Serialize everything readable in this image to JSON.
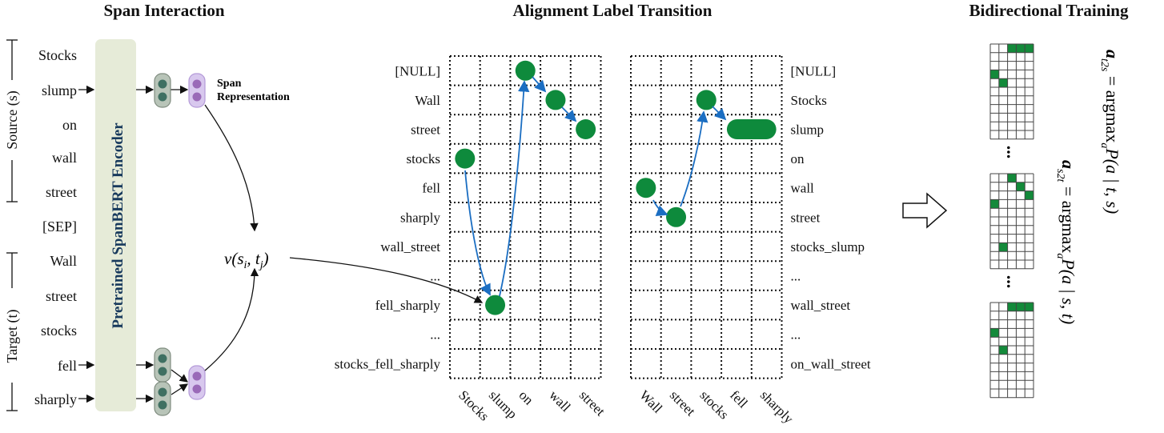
{
  "titles": {
    "span_interaction": "Span Interaction",
    "alignment": "Alignment Label Transition",
    "bidirectional": "Bidirectional Training"
  },
  "left": {
    "source_label": "Source (s)",
    "target_label": "Target (t)",
    "tokens": [
      "Stocks",
      "slump",
      "on",
      "wall",
      "street",
      "[SEP]",
      "Wall",
      "street",
      "stocks",
      "fell",
      "sharply"
    ],
    "encoder_label": "Pretrained SpanBERT Encoder",
    "span_rep_label_line1": "Span",
    "span_rep_label_line2": "Representation",
    "pair_fn": "v(s",
    "pair_fn_i": "i",
    "pair_fn_mid": ", t",
    "pair_fn_j": "j",
    "pair_fn_end": ")"
  },
  "grid_left": {
    "row_labels": [
      "[NULL]",
      "Wall",
      "street",
      "stocks",
      "fell",
      "sharply",
      "wall_street",
      "...",
      "fell_sharply",
      "...",
      "stocks_fell_sharply"
    ],
    "col_labels": [
      "Stocks",
      "slump",
      "on",
      "wall",
      "street"
    ],
    "alignments": [
      [
        3,
        0
      ],
      [
        8,
        1
      ],
      [
        0,
        2
      ],
      [
        1,
        3
      ],
      [
        2,
        4
      ]
    ]
  },
  "grid_right": {
    "row_labels": [
      "[NULL]",
      "Stocks",
      "slump",
      "on",
      "wall",
      "street",
      "stocks_slump",
      "...",
      "wall_street",
      "...",
      "on_wall_street"
    ],
    "col_labels": [
      "Wall",
      "street",
      "stocks",
      "fell",
      "sharply"
    ],
    "alignments": [
      [
        4,
        0
      ],
      [
        5,
        1
      ],
      [
        1,
        2
      ],
      [
        2,
        3,
        4
      ]
    ]
  },
  "mini_grids": [
    {
      "cells": [
        [
          0,
          2
        ],
        [
          0,
          3
        ],
        [
          0,
          4
        ],
        [
          3,
          0
        ],
        [
          4,
          1
        ]
      ]
    },
    {
      "cells": [
        [
          0,
          2
        ],
        [
          1,
          3
        ],
        [
          2,
          4
        ],
        [
          3,
          0
        ],
        [
          8,
          1
        ]
      ]
    },
    {
      "cells": [
        [
          0,
          2
        ],
        [
          0,
          3
        ],
        [
          0,
          4
        ],
        [
          3,
          0
        ],
        [
          5,
          1
        ]
      ]
    }
  ],
  "ellipsis": "...",
  "equations": {
    "t2s": {
      "lhs": "a",
      "lhs_sub": "t2s",
      "mid": " = argmax",
      "mid_sub": "a",
      "rhs": "P(a | t, s)"
    },
    "s2t": {
      "lhs": "a",
      "lhs_sub": "s2t",
      "mid": " = argmax",
      "mid_sub": "a",
      "rhs": "P(a | s, t)"
    }
  },
  "colors": {
    "dot": "#0e8a3c",
    "arrow": "#1b6ec2",
    "encoder": "#e6ebd8",
    "encoder_text": "#17395c",
    "cell_grey": "#b8c4b8",
    "cell_purple": "#d8c8ee"
  }
}
